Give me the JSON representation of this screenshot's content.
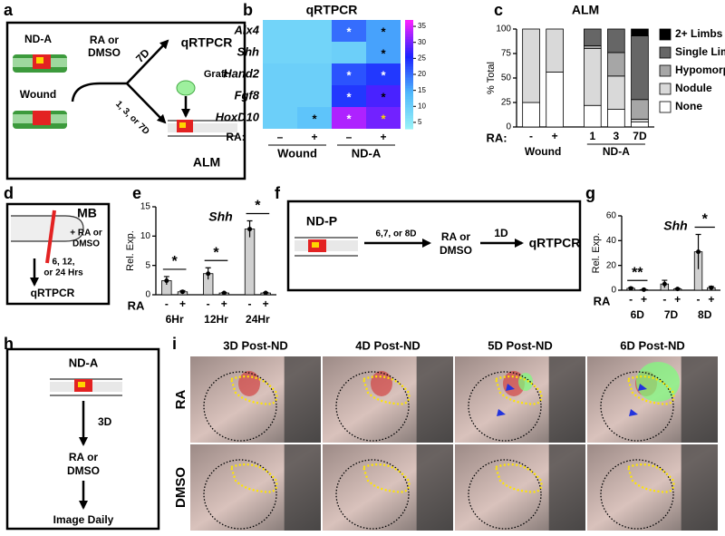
{
  "panel_labels": [
    "a",
    "b",
    "c",
    "d",
    "e",
    "f",
    "g",
    "h",
    "i"
  ],
  "diagram_a": {
    "nda": "ND-A",
    "wound": "Wound",
    "treatment": [
      "RA or",
      "DMSO"
    ],
    "time_top": "7D",
    "readout_top": "qRTPCR",
    "graft": "Graft",
    "time_bottom": "1, 3, or 7D",
    "readout_bottom": "ALM"
  },
  "diagram_d": {
    "model": "MB",
    "treatment": [
      "+ RA or",
      "DMSO"
    ],
    "time": [
      "6, 12,",
      "or 24 Hrs"
    ],
    "readout": "qRTPCR"
  },
  "diagram_f": {
    "model": "ND-P",
    "time": "6,7, or 8D",
    "treatment": [
      "RA or",
      "DMSO"
    ],
    "time2": "1D",
    "readout": "qRTPCR"
  },
  "diagram_h": {
    "model": "ND-A",
    "time": "3D",
    "treatment": [
      "RA or",
      "DMSO"
    ],
    "readout": "Image Daily"
  },
  "images": {
    "columns": [
      "3D Post-ND",
      "4D Post-ND",
      "5D Post-ND",
      "6D Post-ND"
    ],
    "rows": [
      "RA",
      "DMSO"
    ]
  },
  "chart_data": [
    {
      "type": "heatmap",
      "title": "qRTPCR",
      "rows": [
        "Alx4",
        "Shh",
        "Hand2",
        "Fgf8",
        "HoxD10"
      ],
      "x_label": "RA:",
      "groups": [
        {
          "label": "Wound",
          "categories": [
            "–",
            "+"
          ]
        },
        {
          "label": "ND-A",
          "categories": [
            "–",
            "+"
          ]
        }
      ],
      "values": [
        [
          9,
          9,
          20,
          16
        ],
        [
          9,
          9,
          10,
          16
        ],
        [
          10,
          10,
          22,
          24
        ],
        [
          10,
          10,
          24,
          28
        ],
        [
          10,
          12,
          33,
          30
        ]
      ],
      "zlim": [
        3,
        37
      ],
      "zticks": [
        5,
        10,
        15,
        20,
        25,
        30,
        35
      ],
      "colorscale": [
        "#9af3f7",
        "#4fb8fb",
        "#1a22ff",
        "#ff22ff"
      ],
      "stars": [
        {
          "row": 0,
          "col": 2,
          "label": "*",
          "color": "#ffffff"
        },
        {
          "row": 0,
          "col": 3,
          "label": "*",
          "color": "#000000"
        },
        {
          "row": 1,
          "col": 3,
          "label": "*",
          "color": "#000000"
        },
        {
          "row": 2,
          "col": 2,
          "label": "*",
          "color": "#ffffff"
        },
        {
          "row": 2,
          "col": 3,
          "label": "*",
          "color": "#ffffff"
        },
        {
          "row": 3,
          "col": 2,
          "label": "*",
          "color": "#ffffff"
        },
        {
          "row": 3,
          "col": 3,
          "label": "*",
          "color": "#000000"
        },
        {
          "row": 4,
          "col": 1,
          "label": "*",
          "color": "#000000"
        },
        {
          "row": 4,
          "col": 2,
          "label": "*",
          "color": "#ffffff"
        },
        {
          "row": 4,
          "col": 3,
          "label": "*",
          "color": "#ffd700"
        }
      ]
    },
    {
      "type": "stacked_bar",
      "title": "ALM",
      "y_label": "% Total",
      "x_label": "RA:",
      "groups": [
        {
          "label": "Wound",
          "categories": [
            "-",
            "+"
          ]
        },
        {
          "label": "ND-A",
          "categories": [
            "1",
            "3",
            "7D"
          ]
        }
      ],
      "series": [
        {
          "name": "None",
          "color": "#ffffff",
          "values": [
            25,
            56,
            22,
            18,
            5
          ]
        },
        {
          "name": "Nodule",
          "color": "#d9d9d9",
          "values": [
            75,
            44,
            58,
            34,
            3
          ]
        },
        {
          "name": "Hypomorph",
          "color": "#a6a6a6",
          "values": [
            0,
            0,
            3,
            24,
            20
          ]
        },
        {
          "name": "Single Limb",
          "color": "#666666",
          "values": [
            0,
            0,
            17,
            24,
            65
          ]
        },
        {
          "name": "2+ Limbs",
          "color": "#000000",
          "values": [
            0,
            0,
            0,
            0,
            7
          ]
        }
      ],
      "ylim": [
        0,
        100
      ],
      "yticks": [
        0,
        25,
        50,
        75,
        100
      ]
    },
    {
      "type": "bar",
      "title": "Shh",
      "y_label": "Rel. Exp.",
      "x_label": "RA",
      "groups": [
        {
          "label": "6Hr",
          "categories": [
            "-",
            "+"
          ]
        },
        {
          "label": "12Hr",
          "categories": [
            "-",
            "+"
          ]
        },
        {
          "label": "24Hr",
          "categories": [
            "-",
            "+"
          ]
        }
      ],
      "values": [
        2.4,
        0.5,
        3.6,
        0.3,
        11.2,
        0.3
      ],
      "errors": [
        0.7,
        0.2,
        1.0,
        0.1,
        1.4,
        0.1
      ],
      "color": "#d0d0d0",
      "significance": [
        "*",
        "*",
        "*"
      ],
      "ylim": [
        0,
        15
      ],
      "yticks": [
        0,
        5,
        10,
        15
      ]
    },
    {
      "type": "bar",
      "title": "Shh",
      "y_label": "Rel. Exp.",
      "x_label": "RA",
      "groups": [
        {
          "label": "6D",
          "categories": [
            "-",
            "+"
          ]
        },
        {
          "label": "7D",
          "categories": [
            "-",
            "+"
          ]
        },
        {
          "label": "8D",
          "categories": [
            "-",
            "+"
          ]
        }
      ],
      "values": [
        1.5,
        0.5,
        5,
        1,
        31,
        2
      ],
      "errors": [
        0.5,
        0.2,
        3,
        0.5,
        14,
        1
      ],
      "color": "#d0d0d0",
      "significance": [
        "**",
        null,
        "*"
      ],
      "ylim": [
        0,
        60
      ],
      "yticks": [
        0,
        20,
        40,
        60
      ]
    }
  ]
}
